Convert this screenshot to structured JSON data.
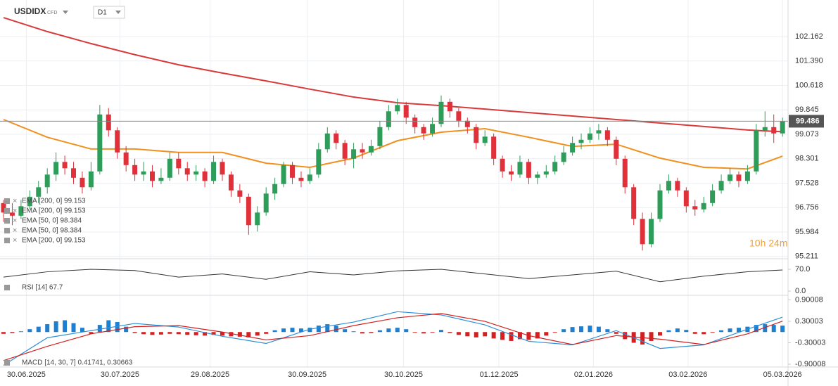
{
  "chart_data": [
    {
      "type": "candlestick",
      "title": "USDIDX",
      "subtitle": "CFD",
      "timeframe": "D1",
      "up_color": "#2e9d5a",
      "down_color": "#e0303a",
      "candles": [
        [
          96.9,
          97.0,
          96.3,
          96.6
        ],
        [
          96.6,
          96.9,
          96.2,
          96.5
        ],
        [
          96.5,
          97.0,
          96.4,
          96.8
        ],
        [
          96.8,
          97.3,
          96.7,
          97.1
        ],
        [
          97.1,
          97.6,
          96.9,
          97.4
        ],
        [
          97.4,
          98.0,
          97.2,
          97.8
        ],
        [
          97.8,
          98.5,
          97.6,
          98.2
        ],
        [
          98.2,
          98.4,
          97.8,
          98.0
        ],
        [
          98.0,
          98.2,
          97.5,
          97.7
        ],
        [
          97.7,
          97.9,
          97.2,
          97.4
        ],
        [
          97.4,
          98.2,
          97.3,
          97.9
        ],
        [
          97.9,
          100.0,
          97.8,
          99.7
        ],
        [
          99.7,
          99.9,
          99.0,
          99.2
        ],
        [
          99.2,
          99.3,
          98.3,
          98.5
        ],
        [
          98.5,
          98.7,
          97.9,
          98.1
        ],
        [
          98.1,
          98.3,
          97.6,
          97.8
        ],
        [
          97.8,
          98.2,
          97.6,
          97.9
        ],
        [
          97.9,
          98.1,
          97.4,
          97.6
        ],
        [
          97.6,
          98.0,
          97.5,
          97.7
        ],
        [
          97.7,
          98.5,
          97.6,
          98.3
        ],
        [
          98.3,
          98.5,
          97.8,
          98.0
        ],
        [
          98.0,
          98.2,
          97.6,
          97.8
        ],
        [
          97.8,
          98.1,
          97.6,
          97.9
        ],
        [
          97.9,
          98.0,
          97.4,
          97.6
        ],
        [
          97.6,
          98.4,
          97.5,
          98.2
        ],
        [
          98.2,
          98.3,
          97.6,
          97.8
        ],
        [
          97.8,
          97.9,
          97.1,
          97.3
        ],
        [
          97.3,
          97.5,
          96.9,
          97.1
        ],
        [
          97.1,
          97.2,
          95.9,
          96.2
        ],
        [
          96.2,
          96.8,
          96.0,
          96.6
        ],
        [
          96.6,
          97.4,
          96.5,
          97.2
        ],
        [
          97.2,
          97.7,
          97.0,
          97.5
        ],
        [
          97.5,
          98.2,
          97.4,
          98.1
        ],
        [
          98.1,
          98.2,
          97.5,
          97.7
        ],
        [
          97.7,
          97.9,
          97.4,
          97.6
        ],
        [
          97.6,
          98.0,
          97.5,
          97.8
        ],
        [
          97.8,
          98.8,
          97.7,
          98.6
        ],
        [
          98.6,
          99.3,
          98.5,
          99.1
        ],
        [
          99.1,
          99.2,
          98.6,
          98.8
        ],
        [
          98.8,
          98.9,
          98.1,
          98.3
        ],
        [
          98.3,
          98.8,
          98.0,
          98.6
        ],
        [
          98.6,
          98.8,
          98.3,
          98.5
        ],
        [
          98.5,
          98.9,
          98.4,
          98.7
        ],
        [
          98.7,
          99.5,
          98.6,
          99.3
        ],
        [
          99.3,
          100.0,
          99.2,
          99.8
        ],
        [
          99.8,
          100.2,
          99.7,
          100.0
        ],
        [
          100.0,
          100.1,
          99.4,
          99.6
        ],
        [
          99.6,
          99.7,
          99.1,
          99.3
        ],
        [
          99.3,
          99.4,
          98.9,
          99.1
        ],
        [
          99.1,
          99.6,
          99.0,
          99.4
        ],
        [
          99.4,
          100.3,
          99.3,
          100.1
        ],
        [
          100.1,
          100.2,
          99.6,
          99.8
        ],
        [
          99.8,
          99.9,
          99.3,
          99.5
        ],
        [
          99.5,
          99.6,
          99.1,
          99.3
        ],
        [
          99.3,
          99.4,
          98.6,
          98.8
        ],
        [
          98.8,
          99.2,
          98.7,
          99.0
        ],
        [
          99.0,
          99.1,
          98.1,
          98.3
        ],
        [
          98.3,
          98.4,
          97.7,
          97.9
        ],
        [
          97.9,
          98.1,
          97.6,
          97.8
        ],
        [
          97.8,
          98.4,
          97.7,
          98.2
        ],
        [
          98.2,
          98.3,
          97.5,
          97.7
        ],
        [
          97.7,
          97.9,
          97.5,
          97.8
        ],
        [
          97.8,
          98.1,
          97.7,
          97.9
        ],
        [
          97.9,
          98.4,
          97.8,
          98.2
        ],
        [
          98.2,
          98.7,
          98.1,
          98.5
        ],
        [
          98.5,
          99.0,
          98.4,
          98.8
        ],
        [
          98.8,
          99.1,
          98.6,
          98.9
        ],
        [
          98.9,
          99.3,
          98.8,
          99.1
        ],
        [
          99.1,
          99.4,
          98.9,
          99.2
        ],
        [
          99.2,
          99.3,
          98.7,
          98.9
        ],
        [
          98.9,
          99.0,
          98.1,
          98.3
        ],
        [
          98.3,
          98.4,
          97.2,
          97.4
        ],
        [
          97.4,
          97.5,
          96.2,
          96.4
        ],
        [
          96.4,
          96.6,
          95.4,
          95.6
        ],
        [
          95.6,
          96.6,
          95.5,
          96.4
        ],
        [
          96.4,
          97.5,
          96.3,
          97.3
        ],
        [
          97.3,
          97.8,
          97.2,
          97.6
        ],
        [
          97.6,
          97.7,
          97.1,
          97.3
        ],
        [
          97.3,
          97.4,
          96.6,
          96.8
        ],
        [
          96.8,
          97.0,
          96.5,
          96.7
        ],
        [
          96.7,
          97.1,
          96.6,
          96.9
        ],
        [
          96.9,
          97.5,
          96.8,
          97.3
        ],
        [
          97.3,
          97.8,
          97.2,
          97.6
        ],
        [
          97.6,
          98.0,
          97.5,
          97.8
        ],
        [
          97.8,
          97.9,
          97.4,
          97.6
        ],
        [
          97.6,
          98.1,
          97.5,
          97.9
        ],
        [
          97.9,
          99.4,
          97.8,
          99.2
        ],
        [
          99.2,
          99.8,
          99.0,
          99.3
        ],
        [
          99.3,
          99.7,
          98.8,
          99.1
        ],
        [
          99.1,
          99.6,
          99.0,
          99.486
        ]
      ],
      "series": [
        {
          "name": "EMA [200, 0] 99.153",
          "color": "#d83a3a",
          "x": [
            0,
            5,
            10,
            15,
            20,
            25,
            30,
            35,
            40,
            45,
            50,
            55,
            60,
            65,
            70,
            75,
            80,
            85,
            89
          ],
          "values": [
            102.76,
            102.32,
            101.94,
            101.59,
            101.27,
            101.01,
            100.76,
            100.5,
            100.25,
            100.07,
            99.98,
            99.87,
            99.76,
            99.65,
            99.54,
            99.43,
            99.32,
            99.21,
            99.153
          ]
        },
        {
          "name": "EMA [50, 0] 98.384",
          "color": "#f0901e",
          "x": [
            0,
            5,
            10,
            15,
            20,
            25,
            30,
            35,
            40,
            45,
            50,
            55,
            60,
            65,
            70,
            75,
            80,
            85,
            89
          ],
          "values": [
            99.54,
            98.98,
            98.61,
            98.61,
            98.5,
            98.5,
            98.16,
            98.03,
            98.32,
            98.87,
            99.14,
            99.25,
            98.98,
            98.69,
            98.76,
            98.32,
            98.03,
            97.98,
            98.384
          ]
        }
      ],
      "legend": [
        "EMA [200, 0] 99.153",
        "EMA [200, 0] 99.153",
        "EMA [50, 0] 98.384",
        "EMA [50, 0] 98.384",
        "EMA [200, 0] 99.153"
      ],
      "ylim": [
        95.14,
        103.14
      ],
      "yticks": [
        {
          "value": 102.162,
          "label": "102.162"
        },
        {
          "value": 101.39,
          "label": "101.390"
        },
        {
          "value": 100.618,
          "label": "100.618"
        },
        {
          "value": 99.845,
          "label": "99.845"
        },
        {
          "value": 99.073,
          "label": "99.073"
        },
        {
          "value": 98.301,
          "label": "98.301"
        },
        {
          "value": 97.528,
          "label": "97.528"
        },
        {
          "value": 96.756,
          "label": "96.756"
        },
        {
          "value": 95.984,
          "label": "95.984"
        },
        {
          "value": 95.211,
          "label": "95.211"
        }
      ],
      "xticks": [
        {
          "value": 2.6,
          "label": "30.06.2025"
        },
        {
          "value": 13.3,
          "label": "30.07.2025"
        },
        {
          "value": 23.6,
          "label": "29.08.2025"
        },
        {
          "value": 34.7,
          "label": "30.09.2025"
        },
        {
          "value": 45.7,
          "label": "30.10.2025"
        },
        {
          "value": 56.6,
          "label": "01.12.2025"
        },
        {
          "value": 67.4,
          "label": "02.01.2026"
        },
        {
          "value": 78.2,
          "label": "03.02.2026"
        },
        {
          "value": 89.0,
          "label": "05.03.2026"
        }
      ],
      "countdown": "10h 24m",
      "grid": true
    },
    {
      "type": "line",
      "x": [
        0,
        5,
        10,
        15,
        20,
        25,
        30,
        35,
        40,
        45,
        50,
        55,
        60,
        65,
        70,
        75,
        80,
        85,
        89
      ],
      "series": [
        {
          "name": "RSI [14] 67.7",
          "color": "#333333",
          "values": [
            45,
            62,
            70,
            66,
            45,
            55,
            38,
            62,
            52,
            65,
            70,
            55,
            40,
            52,
            64,
            30,
            48,
            62,
            67.7
          ]
        }
      ],
      "ylim": [
        -9,
        99.4
      ],
      "yticks": [
        {
          "value": 70,
          "label": "70.0"
        },
        {
          "value": 0,
          "label": "0.0"
        }
      ]
    },
    {
      "type": "macd",
      "label": "MACD [14, 30, 7] 0.41741, 0.30663",
      "up_color": "#1e7fd0",
      "down_color": "#d42020",
      "histogram": [
        -0.05,
        -0.03,
        0.02,
        0.08,
        0.15,
        0.22,
        0.3,
        0.33,
        0.25,
        0.12,
        -0.05,
        0.2,
        0.33,
        0.28,
        0.15,
        -0.03,
        -0.06,
        -0.08,
        -0.07,
        -0.05,
        -0.06,
        -0.08,
        -0.09,
        -0.1,
        -0.08,
        -0.1,
        -0.12,
        -0.13,
        -0.15,
        -0.1,
        -0.05,
        0.05,
        0.1,
        0.12,
        0.1,
        0.12,
        0.18,
        0.22,
        0.18,
        0.08,
        0.02,
        -0.04,
        -0.03,
        0.05,
        0.1,
        0.12,
        0.08,
        -0.02,
        -0.04,
        -0.02,
        0.06,
        -0.03,
        -0.08,
        -0.12,
        -0.15,
        -0.12,
        -0.18,
        -0.22,
        -0.25,
        -0.2,
        -0.22,
        -0.18,
        -0.1,
        -0.02,
        0.08,
        0.14,
        0.16,
        0.18,
        0.15,
        0.08,
        -0.05,
        -0.2,
        -0.3,
        -0.35,
        -0.25,
        -0.1,
        0.05,
        0.1,
        0.06,
        -0.05,
        -0.06,
        -0.02,
        0.05,
        0.1,
        0.12,
        0.15,
        0.2,
        0.22,
        0.2,
        0.18
      ],
      "x": [
        0,
        5,
        10,
        15,
        20,
        25,
        30,
        35,
        40,
        45,
        50,
        55,
        60,
        65,
        70,
        75,
        80,
        85,
        89
      ],
      "series": [
        {
          "name": "MACD",
          "color": "#2b8fd8",
          "values": [
            -0.93,
            -0.16,
            0.04,
            0.24,
            0.14,
            -0.12,
            -0.32,
            0.08,
            0.28,
            0.57,
            0.48,
            0.2,
            -0.26,
            -0.36,
            0.04,
            -0.46,
            -0.36,
            0.08,
            0.41741
          ]
        },
        {
          "name": "Signal",
          "color": "#d42020",
          "values": [
            -0.8,
            -0.4,
            -0.05,
            0.15,
            0.18,
            0.0,
            -0.22,
            -0.1,
            0.18,
            0.4,
            0.52,
            0.3,
            -0.1,
            -0.35,
            -0.1,
            -0.2,
            -0.35,
            -0.05,
            0.30663
          ]
        }
      ],
      "ylim": [
        -0.98,
        0.99
      ],
      "yticks": [
        {
          "value": 0.90008,
          "label": "0.90008"
        },
        {
          "value": 0.30003,
          "label": "0.30003"
        },
        {
          "value": -0.30003,
          "label": "-0.30003"
        },
        {
          "value": -0.90008,
          "label": "-0.90008"
        }
      ]
    }
  ]
}
